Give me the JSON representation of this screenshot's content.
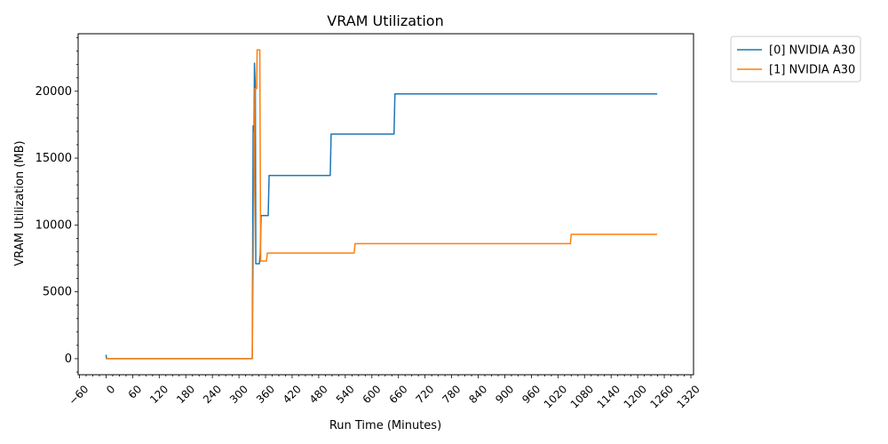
{
  "chart_data": {
    "type": "line",
    "title": "VRAM Utilization",
    "xlabel": "Run Time (Minutes)",
    "ylabel": "VRAM Utilization (MB)",
    "xlim": [
      -63,
      1326
    ],
    "ylim": [
      -1200,
      24300
    ],
    "x_ticks": [
      -60,
      0,
      60,
      120,
      180,
      240,
      300,
      360,
      420,
      480,
      540,
      600,
      660,
      720,
      780,
      840,
      900,
      960,
      1020,
      1080,
      1140,
      1200,
      1260,
      1320
    ],
    "x_tick_labels": [
      "−60",
      "0",
      "60",
      "120",
      "180",
      "240",
      "300",
      "360",
      "420",
      "480",
      "540",
      "600",
      "660",
      "720",
      "780",
      "840",
      "900",
      "960",
      "1020",
      "1080",
      "1140",
      "1200",
      "1260",
      "1320"
    ],
    "x_minor_step": 15,
    "y_ticks": [
      0,
      5000,
      10000,
      15000,
      20000
    ],
    "y_tick_labels": [
      "0",
      "5000",
      "10000",
      "15000",
      "20000"
    ],
    "y_minor_step": 1000,
    "grid": false,
    "legend_position": "outside-top-right",
    "series": [
      {
        "name": "[0] NVIDIA A30",
        "color": "#1f77b4",
        "points": [
          [
            0,
            300
          ],
          [
            1,
            0
          ],
          [
            330,
            0
          ],
          [
            332,
            17400
          ],
          [
            334,
            17000
          ],
          [
            335,
            22100
          ],
          [
            337,
            20200
          ],
          [
            338,
            7100
          ],
          [
            346,
            7100
          ],
          [
            348,
            7800
          ],
          [
            350,
            10700
          ],
          [
            366,
            10700
          ],
          [
            368,
            13700
          ],
          [
            506,
            13700
          ],
          [
            508,
            16800
          ],
          [
            650,
            16800
          ],
          [
            652,
            19800
          ],
          [
            1244,
            19800
          ]
        ]
      },
      {
        "name": "[1] NVIDIA A30",
        "color": "#ff7f0e",
        "points": [
          [
            0,
            0
          ],
          [
            330,
            0
          ],
          [
            332,
            7000
          ],
          [
            334,
            12000
          ],
          [
            336,
            20200
          ],
          [
            340,
            20200
          ],
          [
            341,
            23100
          ],
          [
            347,
            23100
          ],
          [
            349,
            7300
          ],
          [
            362,
            7300
          ],
          [
            364,
            7900
          ],
          [
            560,
            7900
          ],
          [
            562,
            8600
          ],
          [
            1048,
            8600
          ],
          [
            1050,
            9300
          ],
          [
            1244,
            9300
          ]
        ]
      }
    ]
  }
}
